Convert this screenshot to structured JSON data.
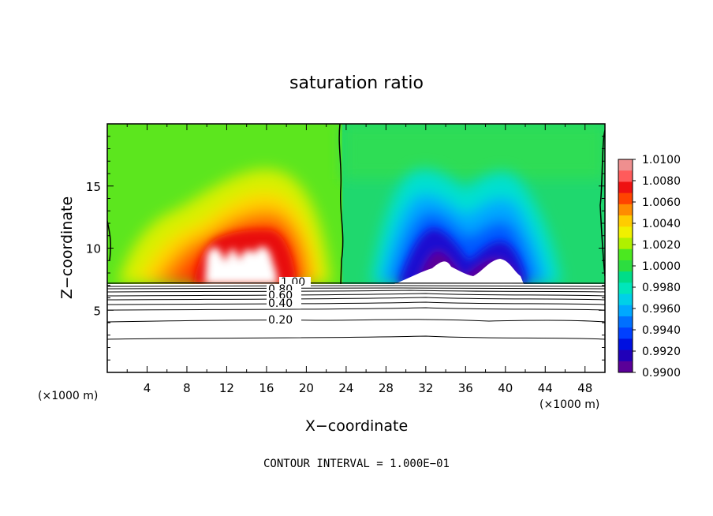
{
  "chart_data": {
    "type": "heatmap",
    "title": "saturation ratio",
    "xlabel": "X−coordinate",
    "ylabel": "Z−coordinate",
    "x_unit_left": "(×1000 m)",
    "x_unit_right": "(×1000 m)",
    "footer": "CONTOUR INTERVAL = 1.000E−01",
    "xlim": [
      0,
      50
    ],
    "ylim": [
      0,
      20
    ],
    "x_ticks": [
      "4",
      "8",
      "12",
      "16",
      "20",
      "24",
      "28",
      "32",
      "36",
      "40",
      "44",
      "48"
    ],
    "y_ticks": [
      "5",
      "10",
      "15"
    ],
    "colorbar": {
      "labels": [
        "1.0100",
        "1.0080",
        "1.0060",
        "1.0040",
        "1.0020",
        "1.0000",
        "0.9980",
        "0.9960",
        "0.9940",
        "0.9920",
        "0.9900"
      ],
      "colors": [
        "#ef8f8f",
        "#ff5b5b",
        "#ee1111",
        "#ff4400",
        "#ff8c00",
        "#ffcc00",
        "#f0f000",
        "#b0f000",
        "#4be820",
        "#2cdd40",
        "#00dd88",
        "#00e6bb",
        "#00d0e8",
        "#00a8ff",
        "#0070ff",
        "#0040ff",
        "#0010e0",
        "#2000b8",
        "#5a0098"
      ]
    },
    "contour_labels": [
      "1.00",
      "0.80",
      "0.60",
      "0.40",
      "0.20"
    ],
    "anomalies": [
      {
        "sign": "positive",
        "x": 16,
        "z": 11.5,
        "peak": 1.007
      },
      {
        "sign": "negative",
        "x": 32,
        "z": 11.5,
        "peak": 0.991
      },
      {
        "sign": "negative",
        "x": 38,
        "z": 11.5,
        "peak": 0.991
      }
    ]
  }
}
